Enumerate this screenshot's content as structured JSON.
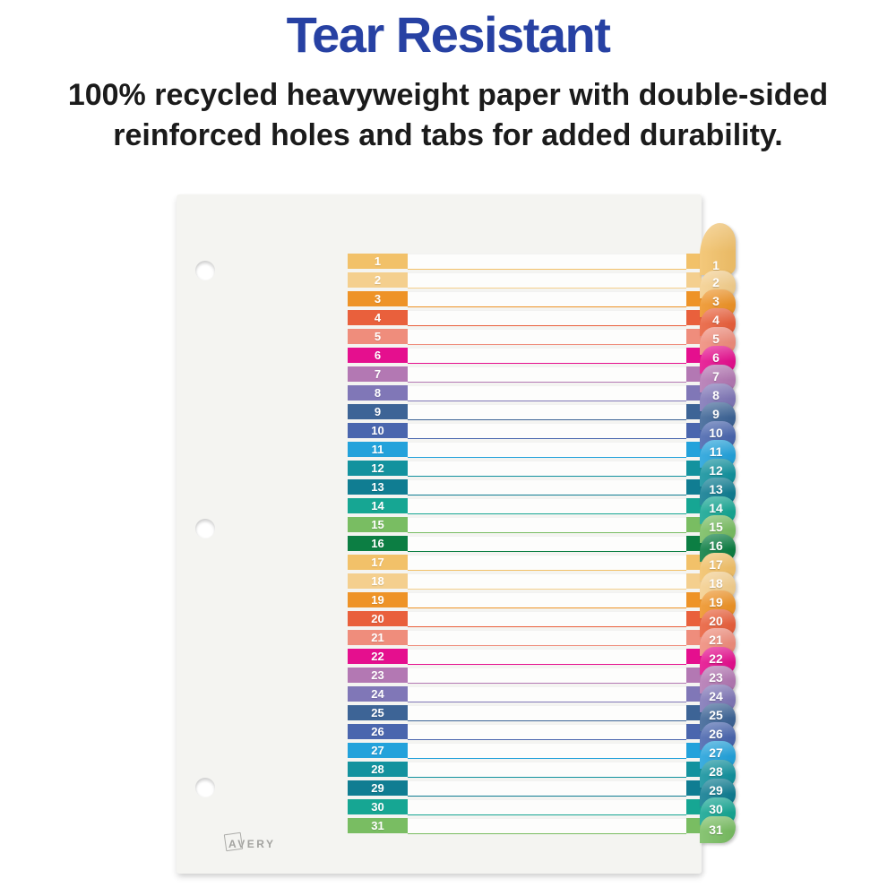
{
  "header": {
    "title": "Tear Resistant",
    "title_color": "#2741A3",
    "subtitle_line1": "100% recycled heavyweight paper with double-sided",
    "subtitle_line2": "reinforced holes and tabs for added durability."
  },
  "brand": {
    "logo_text": "AVERY"
  },
  "divider": {
    "paper_color": "#f4f4f1",
    "punch_holes": 3,
    "tab_count": 31,
    "rows": [
      {
        "label": "1",
        "color": "#F2C169"
      },
      {
        "label": "2",
        "color": "#F4CF8E"
      },
      {
        "label": "3",
        "color": "#EE9327"
      },
      {
        "label": "4",
        "color": "#E9603C"
      },
      {
        "label": "5",
        "color": "#EF8D7C"
      },
      {
        "label": "6",
        "color": "#E50F8E"
      },
      {
        "label": "7",
        "color": "#B378B3"
      },
      {
        "label": "8",
        "color": "#8077B7"
      },
      {
        "label": "9",
        "color": "#3D6496"
      },
      {
        "label": "10",
        "color": "#4A66AE"
      },
      {
        "label": "11",
        "color": "#23A2DB"
      },
      {
        "label": "12",
        "color": "#13929E"
      },
      {
        "label": "13",
        "color": "#107D92"
      },
      {
        "label": "14",
        "color": "#16A693"
      },
      {
        "label": "15",
        "color": "#79BD62"
      },
      {
        "label": "16",
        "color": "#0C7E43"
      },
      {
        "label": "17",
        "color": "#F2C169"
      },
      {
        "label": "18",
        "color": "#F4CF8E"
      },
      {
        "label": "19",
        "color": "#EE9327"
      },
      {
        "label": "20",
        "color": "#E9603C"
      },
      {
        "label": "21",
        "color": "#EF8D7C"
      },
      {
        "label": "22",
        "color": "#E50F8E"
      },
      {
        "label": "23",
        "color": "#B378B3"
      },
      {
        "label": "24",
        "color": "#8077B7"
      },
      {
        "label": "25",
        "color": "#3D6496"
      },
      {
        "label": "26",
        "color": "#4A66AE"
      },
      {
        "label": "27",
        "color": "#23A2DB"
      },
      {
        "label": "28",
        "color": "#13929E"
      },
      {
        "label": "29",
        "color": "#107D92"
      },
      {
        "label": "30",
        "color": "#16A693"
      },
      {
        "label": "31",
        "color": "#79BD62"
      }
    ]
  }
}
